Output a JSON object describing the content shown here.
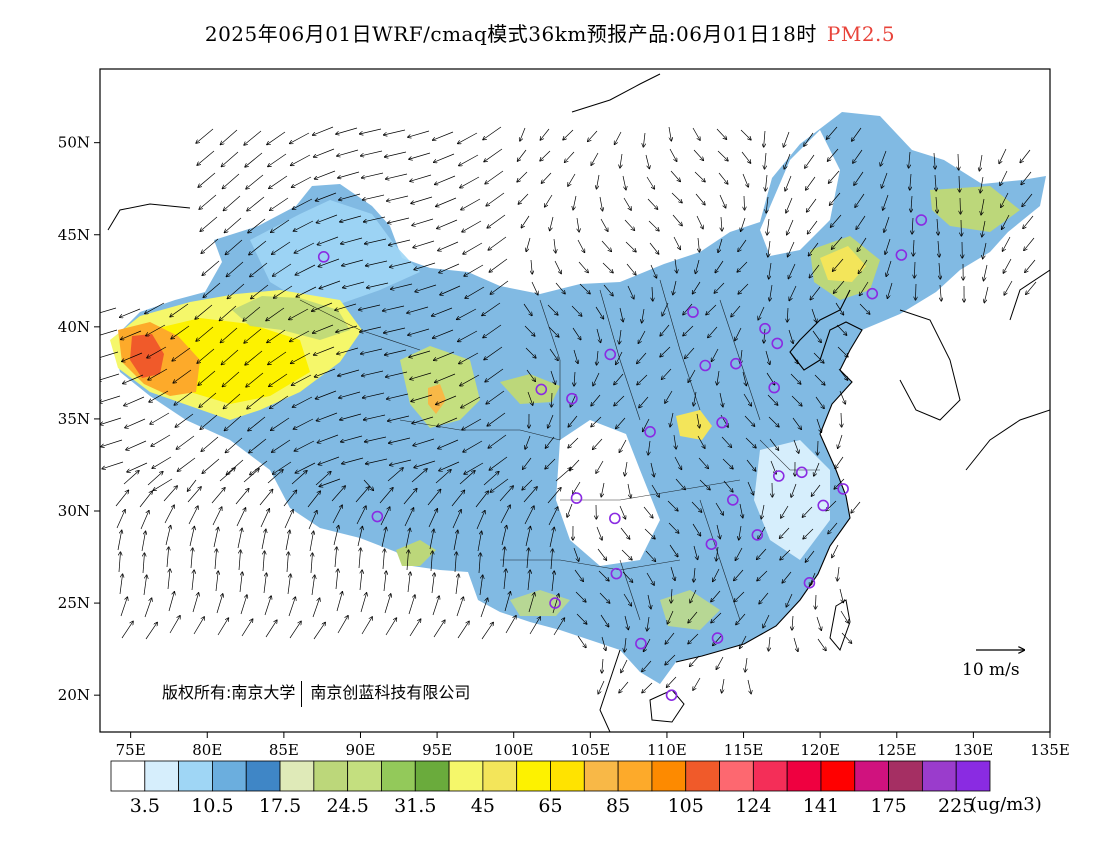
{
  "title": {
    "main": "2025年06月01日WRF/cmaq模式36km预报产品:06月01日18时",
    "variable": "PM2.5",
    "variable_color": "#e8433a"
  },
  "map": {
    "projection": "lat-lon",
    "lon_range": [
      73,
      135
    ],
    "lat_range": [
      18,
      54
    ],
    "lon_ticks": [
      "75E",
      "80E",
      "85E",
      "90E",
      "95E",
      "100E",
      "105E",
      "110E",
      "115E",
      "120E",
      "125E",
      "130E",
      "135E"
    ],
    "lat_ticks": [
      "20N",
      "25N",
      "30N",
      "35N",
      "40N",
      "45N",
      "50N"
    ],
    "credit_left": "版权所有:南京大学",
    "credit_right": "南京创蓝科技有限公司",
    "wind_reference": "10 m/s",
    "city_marker_color": "#8a2be2",
    "wind_vectors": "black arrows"
  },
  "legend": {
    "colors": [
      "#ffffff",
      "#d6eefc",
      "#9fd6f5",
      "#6baede",
      "#3f86c6",
      "#dfeab8",
      "#bcd77a",
      "#c4df7f",
      "#93c95a",
      "#6aab3c",
      "#f5f76a",
      "#f3e55a",
      "#fdf200",
      "#ffe300",
      "#f8b847",
      "#fdaa2a",
      "#fd8a00",
      "#f05a2a",
      "#fd6870",
      "#f42e58",
      "#ef0040",
      "#ff0000",
      "#d0127e",
      "#a52f63",
      "#9a3ccc",
      "#8a2be2"
    ],
    "labels": [
      "3.5",
      "10.5",
      "17.5",
      "24.5",
      "31.5",
      "45",
      "65",
      "85",
      "105",
      "124",
      "141",
      "175",
      "225"
    ],
    "unit": "(ug/m3)"
  },
  "cities": [
    [
      87.6,
      43.8
    ],
    [
      91.1,
      29.7
    ],
    [
      101.8,
      36.6
    ],
    [
      103.8,
      36.1
    ],
    [
      106.3,
      38.5
    ],
    [
      104.1,
      30.7
    ],
    [
      106.6,
      29.6
    ],
    [
      106.7,
      26.6
    ],
    [
      102.7,
      25.0
    ],
    [
      108.3,
      22.8
    ],
    [
      110.3,
      20.0
    ],
    [
      113.3,
      23.1
    ],
    [
      112.9,
      28.2
    ],
    [
      114.3,
      30.6
    ],
    [
      115.9,
      28.7
    ],
    [
      117.3,
      31.9
    ],
    [
      118.8,
      32.1
    ],
    [
      120.2,
      30.3
    ],
    [
      121.5,
      31.2
    ],
    [
      119.3,
      26.1
    ],
    [
      113.6,
      34.8
    ],
    [
      108.9,
      34.3
    ],
    [
      112.5,
      37.9
    ],
    [
      114.5,
      38.0
    ],
    [
      116.4,
      39.9
    ],
    [
      117.2,
      39.1
    ],
    [
      117.0,
      36.7
    ],
    [
      111.7,
      40.8
    ],
    [
      123.4,
      41.8
    ],
    [
      125.3,
      43.9
    ],
    [
      126.6,
      45.8
    ]
  ]
}
